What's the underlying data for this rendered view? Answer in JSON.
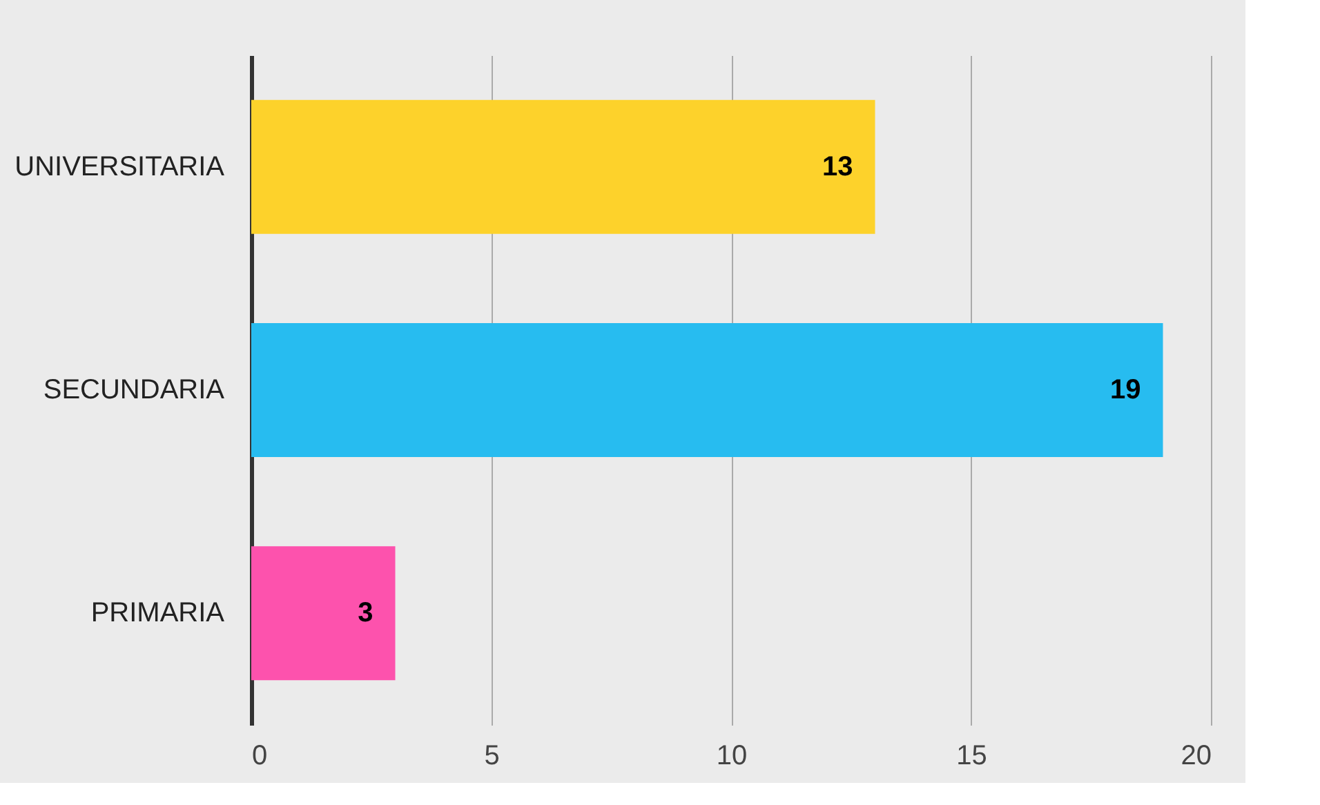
{
  "chart_data": {
    "type": "bar",
    "orientation": "horizontal",
    "categories": [
      "UNIVERSITARIA",
      "SECUNDARIA",
      "PRIMARIA"
    ],
    "values": [
      13,
      19,
      3
    ],
    "colors": [
      "#fdd22b",
      "#27bcf0",
      "#fd52ad"
    ],
    "xlim": [
      0,
      20
    ],
    "xticks": [
      0,
      5,
      10,
      15,
      20
    ],
    "grid": "x",
    "data_labels": true
  }
}
